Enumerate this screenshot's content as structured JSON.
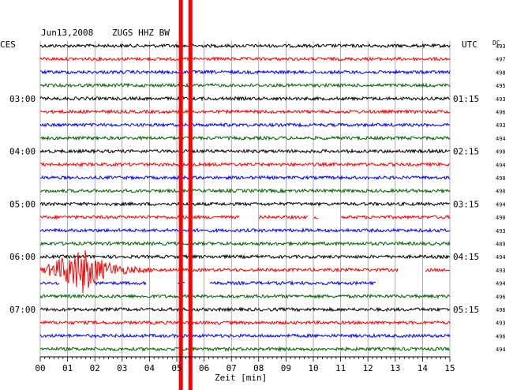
{
  "header": {
    "date": "Jun13,2008",
    "station": "ZUGS HHZ BW",
    "left_unit": "CES",
    "right_unit": "UTC",
    "dc_label": "DC"
  },
  "chart_data": {
    "type": "line",
    "title": "Jun13,2008  ZUGS HHZ BW",
    "xlabel": "Zeit [min]",
    "xlim": [
      0,
      15
    ],
    "x_ticks": [
      "00",
      "01",
      "02",
      "03",
      "04",
      "05",
      "06",
      "07",
      "08",
      "09",
      "10",
      "11",
      "12",
      "13",
      "14",
      "15"
    ],
    "trace_colors": [
      "#000000",
      "#ff0000",
      "#0000ff",
      "#006400"
    ],
    "left_time_labels": [
      {
        "trace": 4,
        "text": "03:00"
      },
      {
        "trace": 8,
        "text": "04:00"
      },
      {
        "trace": 12,
        "text": "05:00"
      },
      {
        "trace": 16,
        "text": "06:00"
      },
      {
        "trace": 20,
        "text": "07:00"
      }
    ],
    "right_time_labels": [
      {
        "trace": 4,
        "text": "01:15"
      },
      {
        "trace": 8,
        "text": "02:15"
      },
      {
        "trace": 12,
        "text": "03:15"
      },
      {
        "trace": 16,
        "text": "04:15"
      },
      {
        "trace": 20,
        "text": "05:15"
      }
    ],
    "dc_offsets": [
      "493",
      "497",
      "498",
      "495",
      "493",
      "496",
      "493",
      "494",
      "490",
      "494",
      "490",
      "490",
      "494",
      "490",
      "493",
      "489",
      "494",
      "493",
      "494",
      "496",
      "496",
      "493",
      "496",
      "494"
    ],
    "events": [
      {
        "trace": 17,
        "start_min": 0.0,
        "peak_min": 1.6,
        "end_min": 4.2,
        "description": "earthquake"
      }
    ],
    "gaps": [
      {
        "trace": 13,
        "start_min": 7.3,
        "end_min": 8.0
      },
      {
        "trace": 13,
        "start_min": 9.8,
        "end_min": 10.0
      },
      {
        "trace": 13,
        "start_min": 10.2,
        "end_min": 11.0
      },
      {
        "trace": 17,
        "start_min": 13.1,
        "end_min": 14.1
      },
      {
        "trace": 18,
        "start_min": 0.7,
        "end_min": 2.0
      },
      {
        "trace": 18,
        "start_min": 3.9,
        "end_min": 5.0
      },
      {
        "trace": 18,
        "start_min": 5.3,
        "end_min": 6.2
      },
      {
        "trace": 18,
        "start_min": 12.3,
        "end_min": 15.0
      }
    ],
    "markers": [
      {
        "x_min": 5.15,
        "color": "#ff0000"
      },
      {
        "x_min": 5.5,
        "color": "#ff0000"
      }
    ]
  }
}
